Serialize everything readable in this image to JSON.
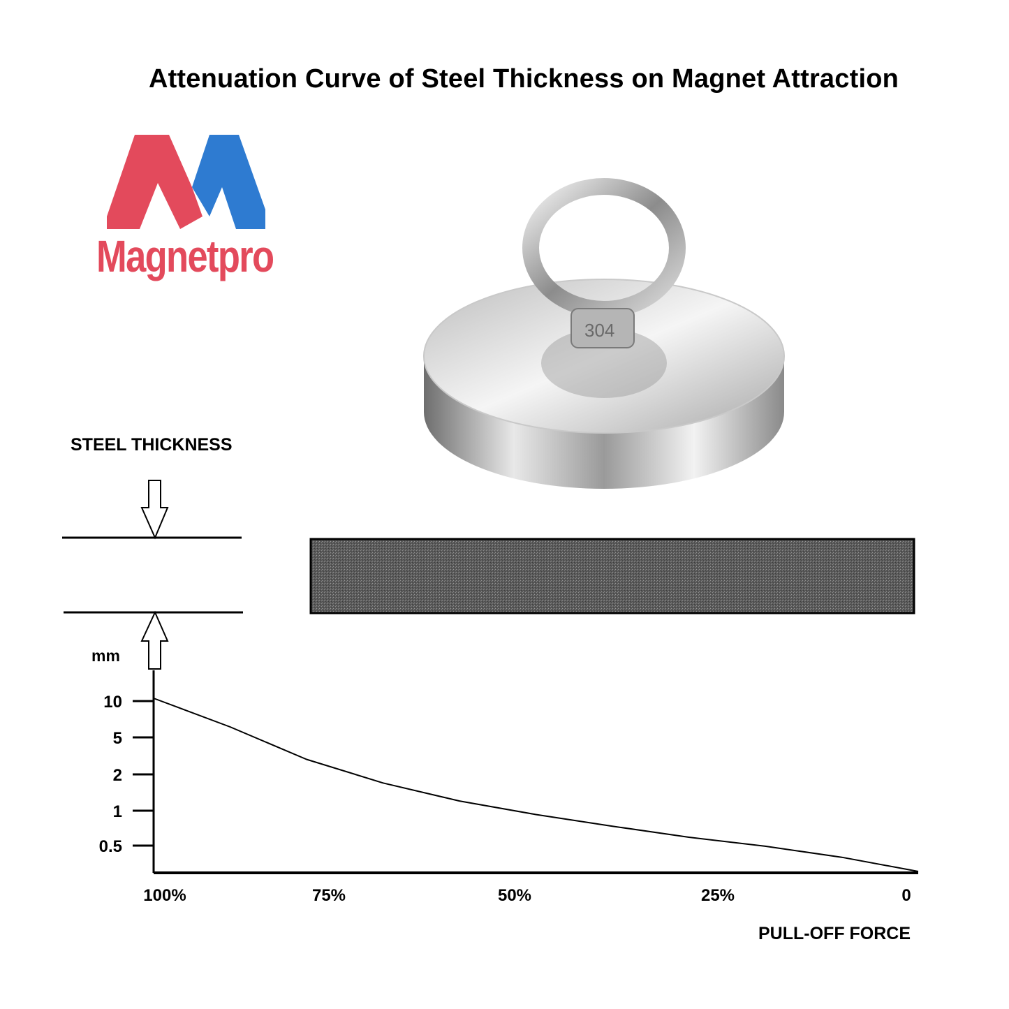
{
  "title": "Attenuation Curve of Steel Thickness on Magnet Attraction",
  "logo": {
    "brand_text": "Magnetpro",
    "colors": {
      "red": "#e34a5c",
      "blue": "#2e7bd1"
    }
  },
  "product": {
    "eyebolt_marking": "304"
  },
  "diagram": {
    "steel_label": "STEEL THICKNESS"
  },
  "chart_data": {
    "type": "line",
    "title": "Attenuation Curve of Steel Thickness on Magnet Attraction",
    "ylabel": "mm",
    "xlabel": "PULL-OFF FORCE",
    "y_ticks": [
      "10",
      "5",
      "2",
      "1",
      "0.5"
    ],
    "x_ticks": [
      "100%",
      "75%",
      "50%",
      "25%",
      "0"
    ],
    "x_direction": "decreasing",
    "series": [
      {
        "x": [
          100,
          90,
          80,
          70,
          60,
          50,
          40,
          30,
          20,
          10,
          0
        ],
        "y": [
          10,
          5.6,
          2.9,
          1.8,
          1.25,
          0.95,
          0.75,
          0.6,
          0.5,
          0.4,
          0.3
        ]
      }
    ],
    "grid": false
  }
}
